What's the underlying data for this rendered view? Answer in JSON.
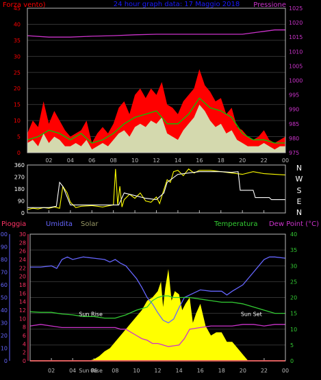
{
  "title": "24 hour graph data: 17 Maggio 2018",
  "chart_data": [
    {
      "id": "wind-pressure",
      "type": "line",
      "left_axis_label": "Forza vento)",
      "right_axis_label": "Pressione",
      "left_ylim": [
        0,
        45
      ],
      "left_ticks": [
        0,
        5,
        10,
        15,
        20,
        25,
        30,
        35,
        40,
        45
      ],
      "right_ylim": [
        975,
        1025
      ],
      "right_ticks": [
        975,
        980,
        985,
        990,
        995,
        1000,
        1005,
        1010,
        1015,
        1020,
        1025
      ],
      "x_ticks": [
        "02",
        "04",
        "06",
        "08",
        "10",
        "12",
        "14",
        "16",
        "18",
        "20",
        "22",
        "00"
      ],
      "colors": {
        "gust": "#ff0000",
        "average": "#00cc00",
        "speed": "#ccffcc",
        "pressure": "#cc33cc"
      },
      "series": [
        {
          "key": "gust",
          "axis": "left",
          "x": [
            0,
            0.5,
            1,
            1.5,
            2,
            2.5,
            3,
            3.5,
            4,
            4.5,
            5,
            5.5,
            6,
            6.5,
            7,
            7.5,
            8,
            8.5,
            9,
            9.5,
            10,
            10.5,
            11,
            11.5,
            12,
            12.5,
            13,
            13.5,
            14,
            14.5,
            15,
            15.5,
            16,
            16.5,
            17,
            17.5,
            18,
            18.5,
            19,
            19.5,
            20,
            20.5,
            21,
            21.5,
            22,
            22.5,
            23,
            23.5,
            24
          ],
          "values": [
            6,
            10,
            8,
            16,
            9,
            13,
            10,
            7,
            5,
            6,
            7,
            10,
            3,
            6,
            8,
            6,
            9,
            14,
            16,
            12,
            18,
            20,
            17,
            20,
            18,
            22,
            15,
            14,
            12,
            16,
            18,
            20,
            26,
            21,
            19,
            16,
            17,
            12,
            14,
            8,
            7,
            5,
            4,
            5,
            7,
            4,
            3,
            4,
            5
          ]
        },
        {
          "key": "average",
          "axis": "left",
          "x": [
            0,
            1,
            2,
            3,
            4,
            5,
            6,
            7,
            8,
            9,
            10,
            11,
            12,
            13,
            14,
            15,
            16,
            17,
            18,
            19,
            20,
            21,
            22,
            23,
            24
          ],
          "values": [
            4,
            5,
            7,
            6,
            4,
            6,
            3,
            4,
            6,
            9,
            11,
            12,
            13,
            9,
            9,
            12,
            17,
            14,
            13,
            11,
            6,
            4,
            4,
            3,
            3
          ]
        },
        {
          "key": "speed",
          "axis": "left",
          "x": [
            0,
            0.5,
            1,
            1.5,
            2,
            2.5,
            3,
            3.5,
            4,
            4.5,
            5,
            5.5,
            6,
            6.5,
            7,
            7.5,
            8,
            8.5,
            9,
            9.5,
            10,
            10.5,
            11,
            11.5,
            12,
            12.5,
            13,
            13.5,
            14,
            14.5,
            15,
            15.5,
            16,
            16.5,
            17,
            17.5,
            18,
            18.5,
            19,
            19.5,
            20,
            20.5,
            21,
            21.5,
            22,
            22.5,
            23,
            23.5,
            24
          ],
          "values": [
            3,
            4,
            2,
            6,
            3,
            5,
            4,
            2,
            2,
            3,
            2,
            4,
            1,
            2,
            3,
            2,
            4,
            6,
            7,
            5,
            8,
            9,
            8,
            10,
            9,
            11,
            6,
            5,
            4,
            7,
            9,
            11,
            15,
            13,
            10,
            8,
            9,
            6,
            7,
            4,
            3,
            2,
            2,
            2,
            3,
            2,
            1,
            2,
            2
          ]
        },
        {
          "key": "pressure",
          "axis": "right",
          "x": [
            0,
            2,
            4,
            6,
            8,
            10,
            12,
            14,
            16,
            18,
            20,
            21,
            22,
            23,
            24
          ],
          "values": [
            1015.5,
            1015,
            1015,
            1015.3,
            1015.5,
            1015.8,
            1016,
            1016,
            1016,
            1016,
            1016,
            1016.5,
            1017,
            1017.5,
            1017.5
          ]
        }
      ]
    },
    {
      "id": "wind-direction",
      "type": "line",
      "ylim": [
        0,
        360
      ],
      "y_ticks": [
        0,
        90,
        180,
        270,
        360
      ],
      "direction_labels": [
        "N",
        "W",
        "S",
        "E",
        "N"
      ],
      "x_ticks": [
        "02",
        "04",
        "06",
        "08",
        "10",
        "12",
        "14",
        "16",
        "18",
        "20",
        "22",
        "00"
      ],
      "colors": {
        "direction": "#ffff00",
        "average": "#ffffff"
      },
      "series": [
        {
          "key": "direction",
          "x": [
            0,
            0.5,
            1,
            1.5,
            2,
            2.5,
            3,
            3.3,
            3.7,
            4,
            4.5,
            5,
            6,
            7,
            8,
            8.2,
            8.4,
            8.6,
            8.8,
            9,
            9.5,
            10,
            10.5,
            11,
            11.5,
            12,
            12.3,
            12.6,
            13,
            13.3,
            13.6,
            14,
            14.5,
            15,
            15.5,
            16,
            17,
            18,
            19,
            20,
            21,
            22,
            23,
            24
          ],
          "values": [
            25,
            35,
            30,
            40,
            35,
            45,
            35,
            200,
            150,
            80,
            40,
            50,
            55,
            45,
            60,
            330,
            60,
            200,
            45,
            100,
            140,
            110,
            150,
            90,
            80,
            120,
            70,
            150,
            250,
            230,
            310,
            320,
            280,
            330,
            300,
            320,
            320,
            310,
            300,
            290,
            310,
            295,
            290,
            285
          ]
        },
        {
          "key": "average",
          "x": [
            0,
            2,
            2.7,
            3,
            3.3,
            4,
            6,
            8,
            8.5,
            9,
            10,
            11,
            12,
            12.7,
            13,
            14,
            16,
            18,
            19,
            19.6,
            19.8,
            21,
            21.2,
            22.5,
            22.7,
            24
          ],
          "values": [
            40,
            40,
            50,
            230,
            200,
            60,
            60,
            60,
            60,
            150,
            130,
            110,
            100,
            150,
            230,
            290,
            310,
            310,
            305,
            310,
            170,
            170,
            115,
            115,
            100,
            100
          ]
        }
      ]
    },
    {
      "id": "rain-humidity-temperature",
      "type": "line",
      "axis_labels": {
        "rain": "Pioggia",
        "humidity": "Umidita",
        "solar": "Solar",
        "temperature": "Temperatura",
        "dew_point": "Dew Point (°C)"
      },
      "rain_ylim": [
        0,
        30
      ],
      "rain_ticks": [
        0,
        2,
        4,
        6,
        8,
        10,
        12,
        14,
        16,
        18,
        20,
        22,
        24,
        26,
        28,
        30
      ],
      "humidity_ylim": [
        0,
        100
      ],
      "humidity_ticks": [
        0,
        10,
        20,
        30,
        40,
        50,
        60,
        70,
        80,
        90,
        100
      ],
      "temperature_ylim": [
        0,
        40
      ],
      "temperature_ticks": [
        0,
        5,
        10,
        15,
        20,
        25,
        30,
        35,
        40
      ],
      "x_ticks": [
        "02",
        "04",
        "06",
        "08",
        "10",
        "12",
        "14",
        "16",
        "18",
        "20",
        "22",
        "00"
      ],
      "x_ticks_overlap_label": "Sun Rise",
      "annotations": [
        {
          "text": "Sun Rise",
          "x": 5.7,
          "y_temp": 14.2
        },
        {
          "text": "Sun Set",
          "x": 20.8,
          "y_temp": 14.2
        }
      ],
      "colors": {
        "rain": "#ff0000",
        "humidity": "#6666ff",
        "solar": "#ffff00",
        "temperature": "#33cc33",
        "dew_point": "#cc33cc"
      },
      "series": [
        {
          "key": "humidity",
          "axis": "humidity",
          "x": [
            0,
            1,
            2,
            2.5,
            3,
            3.5,
            4,
            5,
            6,
            7,
            7.5,
            8,
            8.5,
            9,
            9.5,
            10,
            10.5,
            11,
            11.5,
            12,
            12.5,
            13,
            13.5,
            14,
            14.5,
            15,
            16,
            17,
            18,
            18.5,
            19,
            20,
            21,
            21.5,
            22,
            22.5,
            23,
            24
          ],
          "values": [
            74,
            74,
            75,
            73,
            80,
            82,
            80,
            82,
            81,
            80,
            78,
            80,
            77,
            75,
            70,
            65,
            58,
            50,
            45,
            38,
            32,
            30,
            33,
            42,
            50,
            52,
            56,
            55,
            55,
            52,
            55,
            60,
            70,
            75,
            80,
            82,
            82,
            81
          ]
        },
        {
          "key": "temperature",
          "axis": "temperature",
          "x": [
            0,
            1,
            2,
            3,
            4,
            5,
            6,
            7,
            8,
            9,
            10,
            11,
            11.5,
            12,
            12.5,
            13,
            13.5,
            14,
            15,
            16,
            17,
            18,
            19,
            20,
            21,
            22,
            23,
            24
          ],
          "values": [
            15.5,
            15.3,
            15.3,
            14.8,
            14.5,
            14,
            14,
            13.5,
            13.5,
            14.5,
            16,
            17,
            19,
            20,
            20.5,
            20.5,
            20,
            20,
            20,
            19.5,
            19,
            18.5,
            18.5,
            18,
            17,
            16,
            15,
            15
          ]
        },
        {
          "key": "dew_point",
          "axis": "temperature",
          "x": [
            0,
            1,
            2,
            3,
            4,
            5,
            6,
            7,
            8,
            8.5,
            9,
            9.5,
            10,
            10.5,
            11,
            11.5,
            12,
            12.5,
            13,
            14,
            14.5,
            15,
            16,
            17,
            18,
            19,
            20,
            21,
            22,
            23,
            24
          ],
          "values": [
            11,
            11.5,
            11,
            10.5,
            10.5,
            10.5,
            10.5,
            10.5,
            10.5,
            10,
            10,
            9,
            8,
            7,
            6.5,
            5.5,
            5.5,
            5,
            4.5,
            5,
            7,
            10,
            10.5,
            11,
            11,
            11,
            11.5,
            11.5,
            11,
            11.5,
            11.5
          ]
        },
        {
          "key": "solar",
          "axis": "temperature",
          "fill": true,
          "x": [
            5.5,
            6,
            6.5,
            7,
            7.5,
            8,
            8.5,
            9,
            9.5,
            10,
            10.5,
            11,
            11.5,
            12,
            12.3,
            12.5,
            12.7,
            13,
            13.3,
            13.6,
            14,
            14.3,
            14.6,
            15,
            15.3,
            15.6,
            16,
            16.5,
            17,
            17.5,
            18,
            18.5,
            19,
            19.5,
            20,
            20.5
          ],
          "values": [
            0,
            0.5,
            1.5,
            3,
            4,
            6,
            8,
            10,
            12,
            14,
            16,
            19,
            20,
            22,
            25,
            17,
            23,
            29,
            19,
            22,
            21,
            16,
            18,
            20,
            12,
            15,
            18,
            11,
            8,
            9,
            9,
            6,
            6,
            4,
            2,
            0
          ]
        },
        {
          "key": "rain",
          "axis": "rain",
          "x": [
            0,
            24
          ],
          "values": [
            0,
            0
          ]
        }
      ]
    }
  ]
}
